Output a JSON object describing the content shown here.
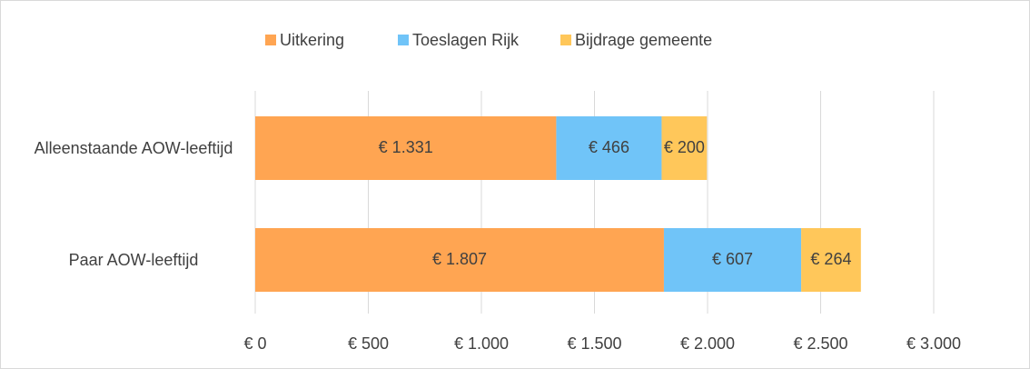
{
  "chart_data": {
    "type": "stacked-barh",
    "categories": [
      "Alleenstaande AOW-leeftijd",
      "Paar AOW-leeftijd"
    ],
    "series": [
      {
        "name": "Uitkering",
        "color": "#ffa552",
        "values": [
          1331,
          1807
        ],
        "value_labels": [
          "€ 1.331",
          "€ 1.807"
        ]
      },
      {
        "name": "Toeslagen Rijk",
        "color": "#70c4f8",
        "values": [
          466,
          607
        ],
        "value_labels": [
          "€ 466",
          "€ 607"
        ]
      },
      {
        "name": "Bijdrage gemeente",
        "color": "#ffc75a",
        "values": [
          200,
          264
        ],
        "value_labels": [
          "€ 200",
          "€ 264"
        ]
      }
    ],
    "xlim": [
      0,
      3000
    ],
    "xticks": [
      {
        "value": 0,
        "label": "€ 0"
      },
      {
        "value": 500,
        "label": "€ 500"
      },
      {
        "value": 1000,
        "label": "€ 1.000"
      },
      {
        "value": 1500,
        "label": "€ 1.500"
      },
      {
        "value": 2000,
        "label": "€ 2.000"
      },
      {
        "value": 2500,
        "label": "€ 2.500"
      },
      {
        "value": 3000,
        "label": "€ 3.000"
      }
    ],
    "grid": true,
    "legend": "top"
  }
}
